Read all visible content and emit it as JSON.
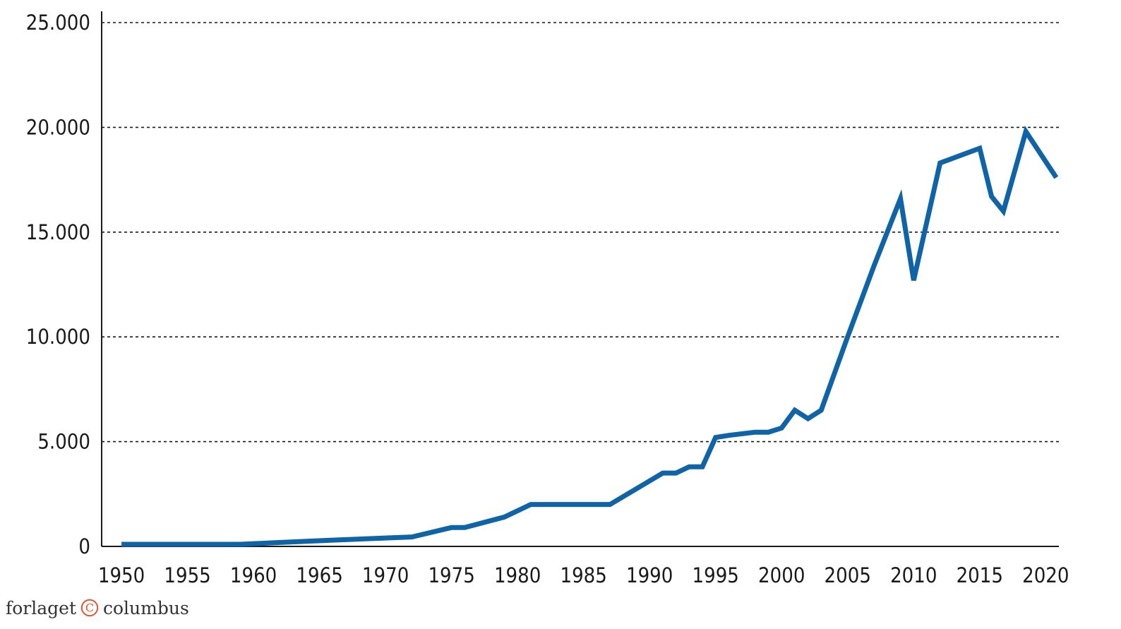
{
  "chart_data": {
    "type": "line",
    "title": "",
    "xlabel": "",
    "ylabel": "",
    "xlim": [
      1948.5,
      2021
    ],
    "ylim": [
      0,
      25000
    ],
    "x_ticks": [
      1950,
      1955,
      1960,
      1965,
      1970,
      1975,
      1980,
      1985,
      1990,
      1995,
      2000,
      2005,
      2010,
      2015,
      2020
    ],
    "y_ticks": [
      0,
      5000,
      10000,
      15000,
      20000,
      25000
    ],
    "y_tick_labels": [
      "0",
      "5.000",
      "10.000",
      "15.000",
      "20.000",
      "25.000"
    ],
    "grid": "horizontal dashed",
    "legend": "none",
    "series": [
      {
        "color": "#0f64a8",
        "x": [
          1950,
          1959,
          1966,
          1972,
          1975,
          1976,
          1979,
          1981,
          1982,
          1987,
          1991,
          1992,
          1993,
          1994,
          1995,
          1996,
          1998,
          1999,
          2000,
          2001,
          2002,
          2003,
          2005,
          2007,
          2009,
          2010,
          2012,
          2015,
          2015.9,
          2016.8,
          2018.5,
          2020.8
        ],
        "y": [
          100,
          100,
          300,
          450,
          900,
          900,
          1400,
          2000,
          2000,
          2000,
          3500,
          3500,
          3800,
          3800,
          5200,
          5300,
          5450,
          5450,
          5650,
          6500,
          6100,
          6500,
          10000,
          13400,
          16600,
          12700,
          18300,
          19000,
          16700,
          16000,
          19800,
          17600
        ]
      }
    ]
  },
  "branding": {
    "left_text": "forlaget",
    "right_text": "columbus",
    "mark": "C",
    "mark_color": "#e4572e",
    "icon": "copyright-circle-c-icon"
  }
}
